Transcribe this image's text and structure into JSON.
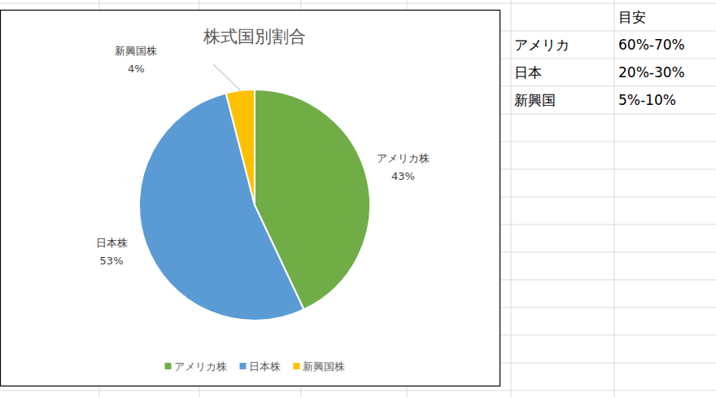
{
  "chart_data": {
    "type": "pie",
    "title": "株式国別割合",
    "categories": [
      "アメリカ株",
      "日本株",
      "新興国株"
    ],
    "values": [
      43,
      53,
      4
    ],
    "value_labels": [
      "43%",
      "53%",
      "4%"
    ],
    "colors": [
      "#70ad47",
      "#5b9bd5",
      "#ffc000"
    ],
    "legend": "bottom",
    "data_labels": true
  },
  "table": {
    "header": [
      "目安"
    ],
    "rows": [
      [
        "アメリカ",
        "60%-70%"
      ],
      [
        "日本",
        "20%-30%"
      ],
      [
        "新興国",
        "5%-10%"
      ]
    ]
  }
}
